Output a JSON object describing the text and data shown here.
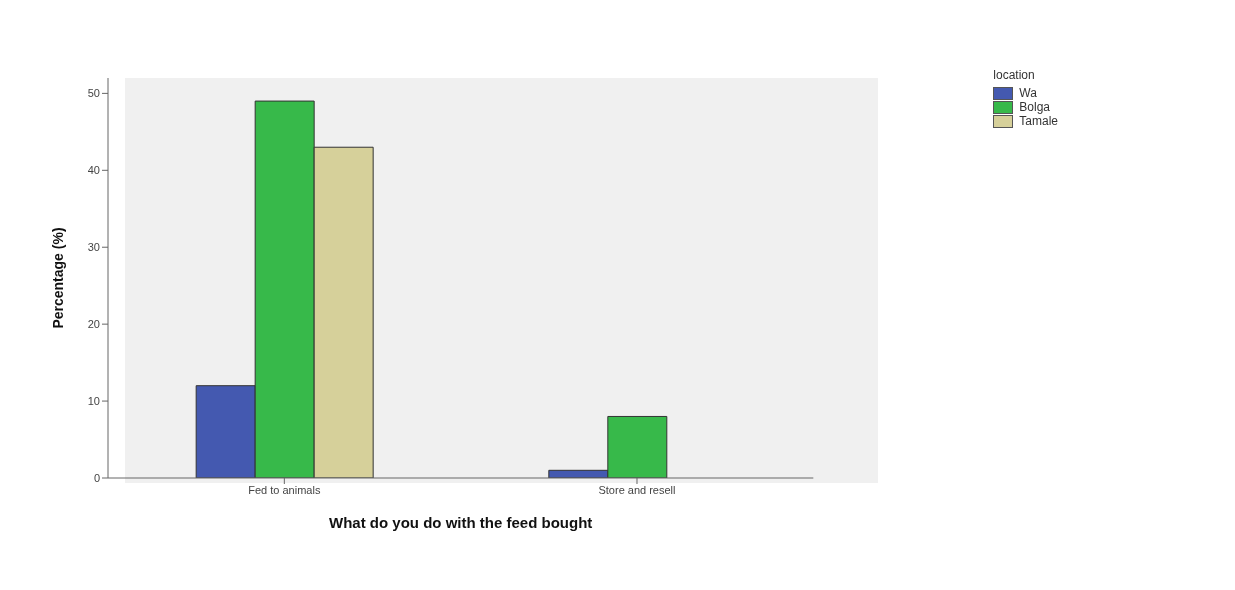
{
  "chart_data": {
    "type": "bar",
    "xlabel": "What do you do with the feed bought",
    "ylabel": "Percentage (%)",
    "legend_title": "location",
    "categories": [
      "Fed to animals",
      "Store and resell"
    ],
    "series": [
      {
        "name": "Wa",
        "color": "#4459b0",
        "values": [
          12,
          1
        ]
      },
      {
        "name": "Bolga",
        "color": "#37b94a",
        "values": [
          49,
          8
        ]
      },
      {
        "name": "Tamale",
        "color": "#d6d09a",
        "values": [
          43,
          0
        ]
      }
    ],
    "ylim": [
      0,
      52
    ],
    "yticks": [
      0,
      10,
      20,
      30,
      40,
      50
    ],
    "grid": false,
    "legend": "top right"
  }
}
